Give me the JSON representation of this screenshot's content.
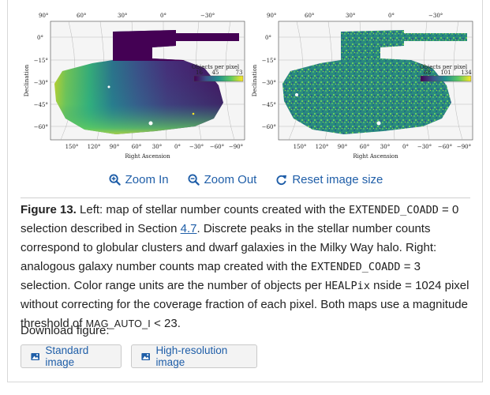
{
  "figure": {
    "left_map": {
      "ra_ticks_top": [
        "90°",
        "60°",
        "30°",
        "0°",
        "−30°"
      ],
      "ra_ticks_bottom": [
        "150°",
        "120°",
        "90°",
        "60°",
        "30°",
        "0°",
        "−30°",
        "−60°",
        "−90°"
      ],
      "dec_ticks": [
        "0°",
        "−15°",
        "−30°",
        "−45°",
        "−60°"
      ],
      "xlabel": "Right Ascension",
      "ylabel": "Declination",
      "colorbar": {
        "label": "Objects per pixel",
        "ticks": [
          "16",
          "45",
          "73"
        ],
        "range": [
          16,
          73
        ],
        "colormap": "viridis"
      }
    },
    "right_map": {
      "ra_ticks_top": [
        "90°",
        "60°",
        "30°",
        "0°",
        "−30°"
      ],
      "ra_ticks_bottom": [
        "150°",
        "120°",
        "90°",
        "60°",
        "30°",
        "0°",
        "−30°",
        "−60°",
        "−90°"
      ],
      "dec_ticks": [
        "0°",
        "−15°",
        "−30°",
        "−45°",
        "−60°"
      ],
      "xlabel": "Right Ascension",
      "ylabel": "Declination",
      "colorbar": {
        "label": "Objects per pixel",
        "ticks": [
          "68",
          "101",
          "134"
        ],
        "range": [
          68,
          134
        ],
        "colormap": "viridis"
      }
    }
  },
  "zoom": {
    "zoom_in": "Zoom In",
    "zoom_out": "Zoom Out",
    "reset": "Reset image size"
  },
  "caption": {
    "label": "Figure 13.",
    "t1": " Left: map of stellar number counts created with the ",
    "code1": "EXTENDED_COADD",
    "t2": " = 0 selection described in Section ",
    "section_link": "4.7",
    "t3": ". Discrete peaks in the stellar number counts correspond to globular clusters and dwarf galaxies in the Milky Way halo. Right: analogous galaxy number counts map created with the ",
    "code2": "EXTENDED_COADD",
    "t4": " = 3 selection. Color range units are the number of objects per ",
    "code3": "HEALPix",
    "t5": " nside = 1024 pixel without correcting for the coverage fraction of each pixel. Both maps use a magnitude threshold of ",
    "code4": "MAG_AUTO_I",
    "t6": " < 23."
  },
  "download": {
    "label": "Download figure:",
    "standard": "Standard image",
    "hires": "High-resolution image"
  },
  "colors": {
    "link": "#1f5ea8",
    "viridis_dark": "#440154",
    "viridis_mid": "#21918c",
    "viridis_bright": "#fde725"
  }
}
